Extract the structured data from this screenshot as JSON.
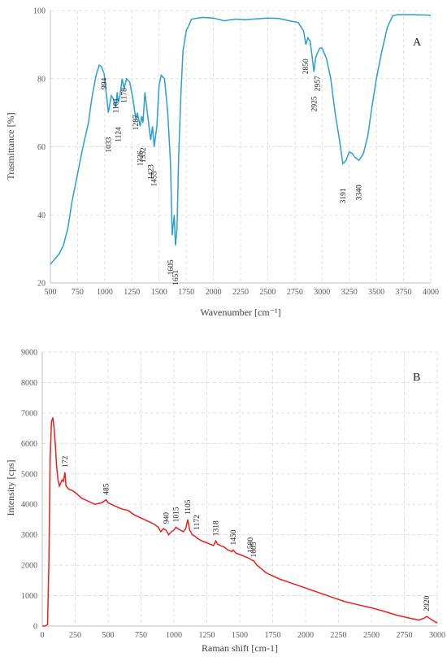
{
  "chart_data": [
    {
      "type": "line",
      "panel_label": "A",
      "xlabel": "Wavenumber [cm⁻¹]",
      "ylabel": "Trasmittance [%]",
      "xlim": [
        500,
        4000
      ],
      "ylim": [
        20,
        100
      ],
      "grid": true,
      "color": "#2a9fd0",
      "x_ticks": [
        "500",
        "750",
        "1000",
        "1250",
        "1500",
        "1750",
        "2000",
        "2250",
        "2500",
        "2750",
        "3000",
        "3250",
        "3500",
        "3750",
        "4000"
      ],
      "y_ticks": [
        "20",
        "40",
        "60",
        "80",
        "100"
      ],
      "series": [
        {
          "x": [
            500,
            540,
            580,
            620,
            660,
            700,
            750,
            800,
            850,
            880,
            920,
            950,
            970,
            994,
            1010,
            1033,
            1060,
            1080,
            1101,
            1115,
            1124,
            1140,
            1160,
            1178,
            1200,
            1230,
            1260,
            1287,
            1300,
            1326,
            1340,
            1352,
            1370,
            1400,
            1423,
            1440,
            1455,
            1480,
            1500,
            1520,
            1550,
            1580,
            1605,
            1620,
            1630,
            1640,
            1651,
            1665,
            1680,
            1700,
            1720,
            1750,
            1800,
            1900,
            2000,
            2100,
            2200,
            2300,
            2400,
            2500,
            2600,
            2700,
            2780,
            2830,
            2850,
            2870,
            2890,
            2910,
            2925,
            2940,
            2957,
            2980,
            3000,
            3040,
            3080,
            3120,
            3160,
            3191,
            3220,
            3250,
            3280,
            3300,
            3340,
            3380,
            3420,
            3460,
            3500,
            3550,
            3600,
            3650,
            3700,
            3750,
            3800,
            3850,
            3900,
            3950,
            4000
          ],
          "y": [
            25.5,
            27,
            28.5,
            31,
            36,
            44,
            52,
            60,
            67,
            74,
            81,
            84,
            83.5,
            81.5,
            77,
            70,
            75,
            74,
            71.5,
            76,
            73,
            75,
            80,
            77,
            80,
            79,
            74,
            68,
            70,
            66,
            69,
            67,
            76,
            68,
            62,
            66,
            60,
            66,
            78,
            81,
            80,
            70,
            55,
            34,
            37,
            40,
            31,
            36,
            57,
            75,
            88,
            94,
            97.5,
            98,
            97.8,
            97,
            97.5,
            97.3,
            97.6,
            97.8,
            97.7,
            97,
            96.5,
            94,
            90,
            92,
            91,
            86,
            82,
            86,
            87.5,
            89,
            89,
            86,
            80,
            70,
            62,
            55,
            56,
            58.5,
            58,
            57,
            56,
            58,
            63,
            72,
            80,
            88,
            95,
            98.5,
            98.8,
            98.8,
            98.8,
            98.8,
            98.7,
            98.7,
            98.6
          ]
        }
      ],
      "annotations": [
        {
          "label": "994",
          "x": 994,
          "y": 84,
          "side": "above"
        },
        {
          "label": "1033",
          "x": 1033,
          "y": 70,
          "side": "below"
        },
        {
          "label": "1101",
          "x": 1101,
          "y": 77,
          "side": "above"
        },
        {
          "label": "1124",
          "x": 1124,
          "y": 73,
          "side": "below"
        },
        {
          "label": "1178",
          "x": 1178,
          "y": 80,
          "side": "above"
        },
        {
          "label": "1287",
          "x": 1287,
          "y": 72,
          "side": "above"
        },
        {
          "label": "1326",
          "x": 1326,
          "y": 66,
          "side": "below"
        },
        {
          "label": "1352",
          "x": 1352,
          "y": 67,
          "side": "below"
        },
        {
          "label": "1423",
          "x": 1423,
          "y": 62,
          "side": "below"
        },
        {
          "label": "1455",
          "x": 1455,
          "y": 60,
          "side": "below"
        },
        {
          "label": "1605",
          "x": 1605,
          "y": 34,
          "side": "below"
        },
        {
          "label": "1651",
          "x": 1651,
          "y": 31,
          "side": "below"
        },
        {
          "label": "2850",
          "x": 2850,
          "y": 93,
          "side": "below"
        },
        {
          "label": "2925",
          "x": 2925,
          "y": 82,
          "side": "below"
        },
        {
          "label": "2957",
          "x": 2957,
          "y": 88,
          "side": "below"
        },
        {
          "label": "3191",
          "x": 3191,
          "y": 55,
          "side": "below"
        },
        {
          "label": "3340",
          "x": 3340,
          "y": 56,
          "side": "below"
        }
      ]
    },
    {
      "type": "line",
      "panel_label": "B",
      "xlabel": "Raman shift [cm-1]",
      "ylabel": "Intensity [cps]",
      "xlim": [
        0,
        3000
      ],
      "ylim": [
        0,
        9000
      ],
      "grid": true,
      "color": "#e8201a",
      "x_ticks": [
        "0",
        "250",
        "500",
        "750",
        "1000",
        "1250",
        "1500",
        "1750",
        "2000",
        "2250",
        "2500",
        "2750",
        "3000"
      ],
      "y_ticks": [
        "0",
        "1000",
        "2000",
        "3000",
        "4000",
        "5000",
        "6000",
        "7000",
        "8000",
        "9000"
      ],
      "series": [
        {
          "x": [
            0,
            20,
            40,
            50,
            60,
            70,
            80,
            90,
            100,
            110,
            120,
            130,
            140,
            150,
            160,
            172,
            180,
            190,
            200,
            230,
            260,
            300,
            350,
            400,
            450,
            485,
            500,
            550,
            600,
            650,
            700,
            750,
            800,
            850,
            880,
            900,
            920,
            940,
            960,
            980,
            1000,
            1015,
            1030,
            1050,
            1070,
            1090,
            1105,
            1120,
            1140,
            1160,
            1172,
            1190,
            1210,
            1240,
            1270,
            1300,
            1318,
            1330,
            1350,
            1380,
            1410,
            1440,
            1450,
            1470,
            1500,
            1530,
            1560,
            1580,
            1600,
            1605,
            1630,
            1660,
            1700,
            1750,
            1800,
            1900,
            2000,
            2100,
            2200,
            2300,
            2400,
            2500,
            2600,
            2700,
            2800,
            2860,
            2900,
            2920,
            2950,
            3000
          ],
          "y": [
            0,
            0,
            50,
            2000,
            5500,
            6700,
            6850,
            6500,
            5900,
            5200,
            4800,
            4600,
            4700,
            4800,
            4750,
            5050,
            4600,
            4550,
            4500,
            4450,
            4350,
            4200,
            4100,
            4000,
            4050,
            4150,
            4050,
            3950,
            3850,
            3800,
            3650,
            3550,
            3450,
            3350,
            3250,
            3100,
            3200,
            3150,
            3000,
            3100,
            3150,
            3250,
            3200,
            3150,
            3100,
            3200,
            3500,
            3150,
            3000,
            2950,
            2900,
            2850,
            2800,
            2750,
            2700,
            2650,
            2800,
            2700,
            2650,
            2600,
            2500,
            2450,
            2500,
            2400,
            2350,
            2300,
            2250,
            2200,
            2150,
            2150,
            2000,
            1900,
            1750,
            1650,
            1550,
            1400,
            1250,
            1100,
            950,
            800,
            700,
            600,
            480,
            350,
            250,
            200,
            260,
            320,
            230,
            100
          ]
        }
      ],
      "annotations": [
        {
          "label": "172",
          "x": 172,
          "y": 5100
        },
        {
          "label": "485",
          "x": 485,
          "y": 4200
        },
        {
          "label": "940",
          "x": 940,
          "y": 3250
        },
        {
          "label": "1015",
          "x": 1015,
          "y": 3300
        },
        {
          "label": "1105",
          "x": 1105,
          "y": 3550
        },
        {
          "label": "1172",
          "x": 1172,
          "y": 3050
        },
        {
          "label": "1318",
          "x": 1318,
          "y": 2850
        },
        {
          "label": "1450",
          "x": 1450,
          "y": 2550
        },
        {
          "label": "1580",
          "x": 1580,
          "y": 2300
        },
        {
          "label": "1605",
          "x": 1605,
          "y": 2150
        },
        {
          "label": "2920",
          "x": 2920,
          "y": 380
        }
      ]
    }
  ]
}
